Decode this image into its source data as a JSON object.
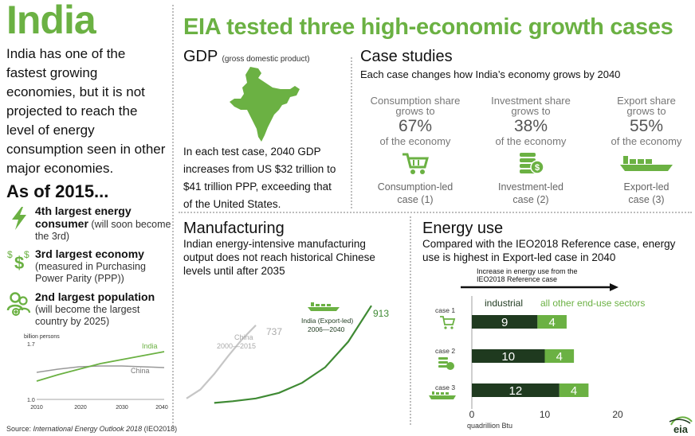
{
  "left": {
    "title": "India",
    "description": "India has one of the fastest growing economies, but it is not projected to reach the level of energy consumption seen in other major economies.",
    "as_of": "As of 2015...",
    "ranks": [
      {
        "icon": "lightning-icon",
        "head": "4th largest energy consumer",
        "note": "(will soon become the 3rd)"
      },
      {
        "icon": "dollar-icon",
        "head": "3rd largest economy",
        "note": "(measured in Purchasing Power Parity (PPP))"
      },
      {
        "icon": "people-icon",
        "head": "2nd largest population",
        "note": "(will become the largest country by 2025)"
      }
    ]
  },
  "main_title": "EIA tested three high-economic growth cases",
  "gdp": {
    "title": "GDP",
    "subtitle": "(gross domestic product)",
    "text": "In each test case, 2040 GDP increases from US $32 trillion to $41 trillion PPP, exceeding that of the United States."
  },
  "case_studies": {
    "title": "Case studies",
    "subtitle": "Each case changes how India’s economy grows by 2040",
    "cases": [
      {
        "line1": "Consumption share",
        "line2": "grows to",
        "pct": "67%",
        "line3": "of the economy",
        "icon": "cart-icon",
        "label1": "Consumption-led",
        "label2": "case (1)"
      },
      {
        "line1": "Investment share",
        "line2": "grows to",
        "pct": "38%",
        "line3": "of the economy",
        "icon": "coins-icon",
        "label1": "Investment-led",
        "label2": "case (2)"
      },
      {
        "line1": "Export share",
        "line2": "grows to",
        "pct": "55%",
        "line3": "of the economy",
        "icon": "ship-icon",
        "label1": "Export-led",
        "label2": "case (3)"
      }
    ]
  },
  "manufacturing": {
    "title": "Manufacturing",
    "text": "Indian energy-intensive manufacturing output does not reach historical Chinese levels until after 2035"
  },
  "energy_use": {
    "title": "Energy use",
    "text": "Compared with the IEO2018 Reference case, energy use is highest in Export-led case in 2040",
    "arrow_text": "Increase in energy use from the IEO2018 Reference case"
  },
  "source_prefix": "Source: ",
  "source_italic": "International Energy Outlook 2018",
  "source_suffix": " (IEO2018)",
  "logo_text": "eia",
  "colors": {
    "accent": "#6bb143",
    "dark_green": "#1f3a1f",
    "gray_line": "#bcbcbc",
    "china_line": "#999999"
  },
  "chart_data": [
    {
      "type": "line",
      "ylabel": "billion persons",
      "x": [
        2010,
        2015,
        2020,
        2025,
        2030,
        2035,
        2040
      ],
      "xticks": [
        "2010",
        "2020",
        "2030",
        "2040"
      ],
      "yticks": [
        "1.0",
        "1.7"
      ],
      "ylim": [
        1.0,
        1.7
      ],
      "xlim": [
        2010,
        2040
      ],
      "series": [
        {
          "name": "India",
          "values": [
            1.23,
            1.31,
            1.38,
            1.45,
            1.5,
            1.55,
            1.6
          ]
        },
        {
          "name": "China",
          "values": [
            1.34,
            1.38,
            1.41,
            1.42,
            1.42,
            1.41,
            1.4
          ]
        }
      ]
    },
    {
      "type": "line",
      "x": [
        2000,
        2005,
        2010,
        2015,
        2020,
        2025,
        2030,
        2035,
        2040
      ],
      "series": [
        {
          "name": "China",
          "years": "2000—2015",
          "x": [
            2000,
            2003,
            2006,
            2009,
            2012,
            2015
          ],
          "values": [
            80,
            160,
            300,
            460,
            610,
            737
          ],
          "end_label": "737"
        },
        {
          "name": "India (Export-led)",
          "years": "2006—2040",
          "x": [
            2006,
            2010,
            2015,
            2020,
            2025,
            2030,
            2035,
            2040
          ],
          "values": [
            40,
            55,
            80,
            130,
            220,
            360,
            590,
            913
          ],
          "end_label": "913"
        }
      ],
      "ylim": [
        0,
        1000
      ]
    },
    {
      "type": "bar",
      "stacked": true,
      "orientation": "horizontal",
      "categories": [
        "case 1",
        "case 2",
        "case 3"
      ],
      "series": [
        {
          "name": "industrial",
          "values": [
            9,
            10,
            12
          ]
        },
        {
          "name": "all other end-use sectors",
          "values": [
            4,
            4,
            4
          ]
        }
      ],
      "xticks": [
        "0",
        "10",
        "20"
      ],
      "xlim": [
        0,
        20
      ],
      "xlabel": "quadrillion Btu"
    }
  ]
}
